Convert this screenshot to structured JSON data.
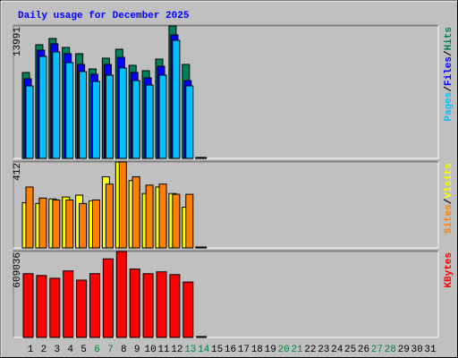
{
  "chart_data": [
    {
      "type": "bar",
      "title": "Daily usage for December 2025",
      "legend_separator": "/",
      "ylim": [
        0,
        13991
      ],
      "yticks": [
        13991
      ],
      "series": [
        {
          "name": "Hits",
          "color": "#00805c",
          "values": [
            9075,
            12006,
            12667,
            11722,
            11060,
            9453,
            10588,
            11533,
            9831,
            9264,
            10493,
            13991,
            9926,
            100,
            null,
            null,
            null,
            null,
            null,
            null,
            null,
            null,
            null,
            null,
            null,
            null,
            null,
            null,
            null,
            null,
            null
          ]
        },
        {
          "name": "Files",
          "color": "#0000ff",
          "values": [
            8413,
            11438,
            12100,
            11060,
            9926,
            8886,
            9926,
            10682,
            9075,
            8508,
            9737,
            13045,
            8224,
            100,
            null,
            null,
            null,
            null,
            null,
            null,
            null,
            null,
            null,
            null,
            null,
            null,
            null,
            null,
            null,
            null,
            null
          ]
        },
        {
          "name": "Pages",
          "color": "#00c0ff",
          "values": [
            7657,
            10776,
            11249,
            10115,
            9169,
            8130,
            8791,
            9548,
            8224,
            7752,
            8791,
            12478,
            7657,
            100,
            null,
            null,
            null,
            null,
            null,
            null,
            null,
            null,
            null,
            null,
            null,
            null,
            null,
            null,
            null,
            null,
            null
          ]
        }
      ]
    },
    {
      "type": "bar",
      "legend_separator": "/",
      "ylim": [
        0,
        412
      ],
      "yticks": [
        412
      ],
      "series": [
        {
          "name": "Visits",
          "color": "#ffff00",
          "values": [
            217,
            213,
            235,
            244,
            253,
            226,
            341,
            412,
            323,
            261,
            292,
            261,
            195,
            4,
            null,
            null,
            null,
            null,
            null,
            null,
            null,
            null,
            null,
            null,
            null,
            null,
            null,
            null,
            null,
            null,
            null
          ]
        },
        {
          "name": "Sites",
          "color": "#ff8000",
          "values": [
            292,
            239,
            230,
            230,
            213,
            230,
            306,
            412,
            341,
            301,
            306,
            257,
            257,
            4,
            null,
            null,
            null,
            null,
            null,
            null,
            null,
            null,
            null,
            null,
            null,
            null,
            null,
            null,
            null,
            null,
            null
          ]
        }
      ]
    },
    {
      "type": "bar",
      "ylim": [
        0,
        609036
      ],
      "yticks": [
        609036
      ],
      "categories": [
        "1",
        "2",
        "3",
        "4",
        "5",
        "6",
        "7",
        "8",
        "9",
        "10",
        "11",
        "12",
        "13",
        "14",
        "15",
        "16",
        "17",
        "18",
        "19",
        "20",
        "21",
        "22",
        "23",
        "24",
        "25",
        "26",
        "27",
        "28",
        "29",
        "30",
        "31"
      ],
      "category_colors": [
        "#000000",
        "#000000",
        "#000000",
        "#000000",
        "#000000",
        "#008040",
        "#008040",
        "#000000",
        "#000000",
        "#000000",
        "#000000",
        "#000000",
        "#008040",
        "#008040",
        "#000000",
        "#000000",
        "#000000",
        "#000000",
        "#000000",
        "#008040",
        "#008040",
        "#000000",
        "#000000",
        "#000000",
        "#000000",
        "#000000",
        "#008040",
        "#008040",
        "#000000",
        "#000000",
        "#000000"
      ],
      "series": [
        {
          "name": "KBytes",
          "color": "#ff0000",
          "values": [
            451881,
            438783,
            419136,
            471528,
            406038,
            451881,
            556665,
            609036,
            484626,
            451881,
            464979,
            445332,
            392940,
            6000,
            null,
            null,
            null,
            null,
            null,
            null,
            null,
            null,
            null,
            null,
            null,
            null,
            null,
            null,
            null,
            null,
            null
          ]
        }
      ]
    }
  ]
}
